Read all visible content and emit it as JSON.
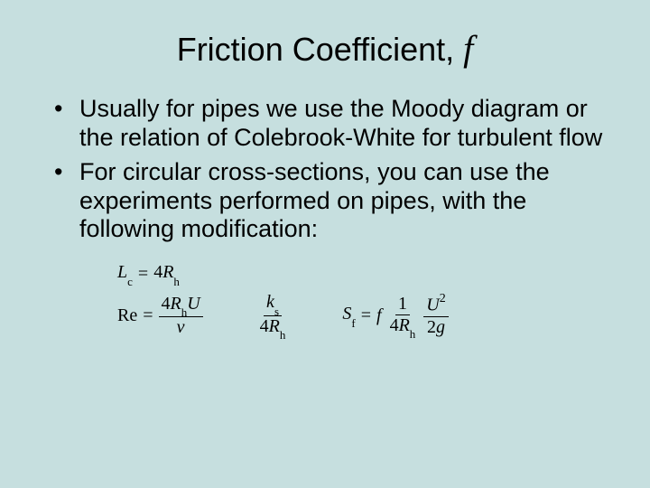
{
  "background_color": "#c6dfdf",
  "text_color": "#000000",
  "title": {
    "prefix": "Friction Coefficient, ",
    "symbol": "f",
    "fontsize": 36,
    "symbol_fontsize": 40,
    "symbol_family": "serif-italic"
  },
  "bullets": {
    "fontsize": 27,
    "items": [
      "Usually for pipes we use the Moody diagram or the relation of Colebrook-White for turbulent flow",
      "For circular cross-sections, you can use the experiments performed on pipes, with the following modification:"
    ]
  },
  "formulas": {
    "fontsize": 20,
    "font_family": "Times New Roman",
    "line1": {
      "lhs_base": "L",
      "lhs_sub": "c",
      "equals": "=",
      "rhs_coef": "4",
      "rhs_base": "R",
      "rhs_sub": "h"
    },
    "line2_re": {
      "lhs": "Re",
      "equals": "=",
      "num_coef": "4",
      "num_base1": "R",
      "num_sub1": "h",
      "num_base2": "U",
      "den": "ν"
    },
    "line2_ks": {
      "num_base": "k",
      "num_sub": "s",
      "den_coef": "4",
      "den_base": "R",
      "den_sub": "h"
    },
    "line2_sf": {
      "lhs_base": "S",
      "lhs_sub": "f",
      "equals": "=",
      "coef": "f",
      "frac1_num": "1",
      "frac1_den_coef": "4",
      "frac1_den_base": "R",
      "frac1_den_sub": "h",
      "frac2_num_base": "U",
      "frac2_num_sup": "2",
      "frac2_den_coef": "2",
      "frac2_den_base": "g"
    }
  }
}
